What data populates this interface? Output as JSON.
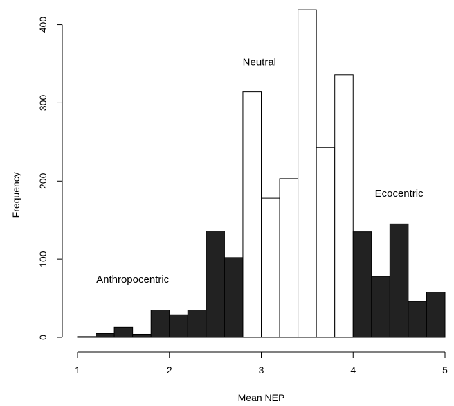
{
  "chart_data": {
    "type": "bar",
    "xlabel": "Mean NEP",
    "ylabel": "Frequency",
    "xlim": [
      1,
      5
    ],
    "ylim": [
      0,
      420
    ],
    "xticks": [
      "1",
      "2",
      "3",
      "4",
      "5"
    ],
    "yticks": [
      "0",
      "100",
      "200",
      "300",
      "400"
    ],
    "grid": false,
    "bin_width": 0.2,
    "bins": [
      {
        "start": 1.0,
        "end": 1.2,
        "value": 1,
        "group": "filled"
      },
      {
        "start": 1.2,
        "end": 1.4,
        "value": 5,
        "group": "filled"
      },
      {
        "start": 1.4,
        "end": 1.6,
        "value": 13,
        "group": "filled"
      },
      {
        "start": 1.6,
        "end": 1.8,
        "value": 4,
        "group": "filled"
      },
      {
        "start": 1.8,
        "end": 2.0,
        "value": 35,
        "group": "filled"
      },
      {
        "start": 2.0,
        "end": 2.2,
        "value": 29,
        "group": "filled"
      },
      {
        "start": 2.2,
        "end": 2.4,
        "value": 35,
        "group": "filled"
      },
      {
        "start": 2.4,
        "end": 2.6,
        "value": 136,
        "group": "filled"
      },
      {
        "start": 2.6,
        "end": 2.8,
        "value": 102,
        "group": "filled"
      },
      {
        "start": 2.8,
        "end": 3.0,
        "value": 314,
        "group": "open"
      },
      {
        "start": 3.0,
        "end": 3.2,
        "value": 178,
        "group": "open"
      },
      {
        "start": 3.2,
        "end": 3.4,
        "value": 203,
        "group": "open"
      },
      {
        "start": 3.4,
        "end": 3.6,
        "value": 419,
        "group": "open"
      },
      {
        "start": 3.6,
        "end": 3.8,
        "value": 243,
        "group": "open"
      },
      {
        "start": 3.8,
        "end": 4.0,
        "value": 336,
        "group": "open"
      },
      {
        "start": 4.0,
        "end": 4.2,
        "value": 135,
        "group": "filled"
      },
      {
        "start": 4.2,
        "end": 4.4,
        "value": 78,
        "group": "filled"
      },
      {
        "start": 4.4,
        "end": 4.6,
        "value": 145,
        "group": "filled"
      },
      {
        "start": 4.6,
        "end": 4.8,
        "value": 46,
        "group": "filled"
      },
      {
        "start": 4.8,
        "end": 5.0,
        "value": 58,
        "group": "filled"
      }
    ],
    "annotations": [
      {
        "text": "Anthropocentric",
        "x": 1.6,
        "y": 70
      },
      {
        "text": "Neutral",
        "x": 2.98,
        "y": 348
      },
      {
        "text": "Ecocentric",
        "x": 4.5,
        "y": 180
      }
    ],
    "colors": {
      "filled": "#222222",
      "open": "#ffffff",
      "outline": "#000000"
    }
  }
}
